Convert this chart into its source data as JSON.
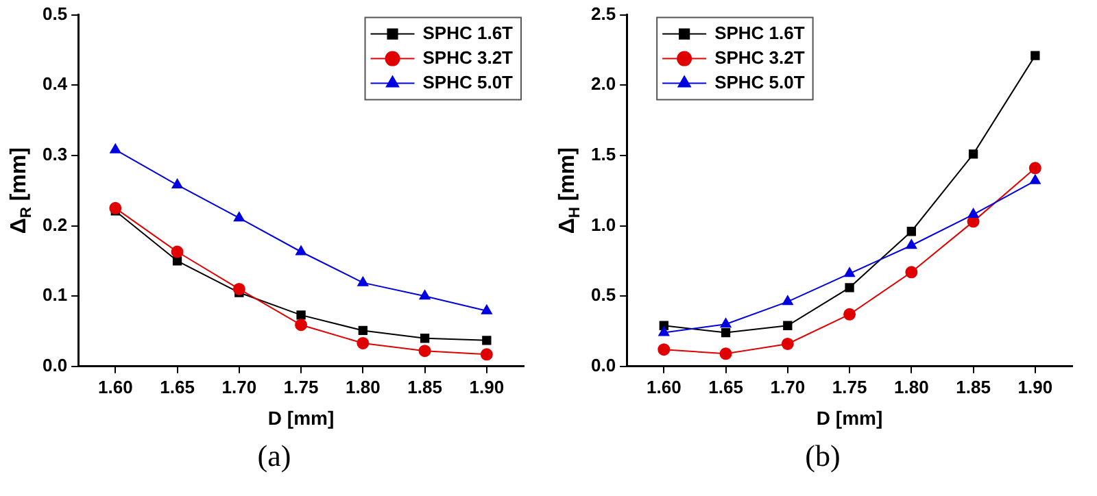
{
  "chart_data": [
    {
      "type": "line",
      "xlabel": "D [mm]",
      "ylabel": "Δ$_{R}$ [mm]",
      "annotations": [
        "(a)"
      ],
      "legend": "top right",
      "grid": false,
      "x": [
        1.6,
        1.65,
        1.7,
        1.75,
        1.8,
        1.85,
        1.9
      ],
      "xlim": [
        1.57,
        1.93
      ],
      "xticks": [
        {
          "value": 1.6,
          "label": "1.60"
        },
        {
          "value": 1.65,
          "label": "1.65"
        },
        {
          "value": 1.7,
          "label": "1.70"
        },
        {
          "value": 1.75,
          "label": "1.75"
        },
        {
          "value": 1.8,
          "label": "1.80"
        },
        {
          "value": 1.85,
          "label": "1.85"
        },
        {
          "value": 1.9,
          "label": "1.90"
        }
      ],
      "ylim": [
        0,
        0.5
      ],
      "yticks": [
        {
          "value": 0,
          "label": "0.0"
        },
        0.1,
        0.2,
        0.3,
        0.4,
        0.5
      ],
      "series": [
        {
          "name": "SPHC 1.6T",
          "color": "#000000",
          "marker": "square",
          "values": [
            0.221,
            0.15,
            0.105,
            0.073,
            0.051,
            0.04,
            0.037
          ]
        },
        {
          "name": "SPHC 3.2T",
          "color": "#e00000",
          "marker": "circle",
          "values": [
            0.225,
            0.163,
            0.11,
            0.059,
            0.033,
            0.022,
            0.017
          ]
        },
        {
          "name": "SPHC 5.0T",
          "color": "#0000e0",
          "marker": "triangle",
          "values": [
            0.308,
            0.258,
            0.211,
            0.163,
            0.119,
            0.1,
            0.079
          ]
        }
      ]
    },
    {
      "type": "line",
      "xlabel": "D [mm]",
      "ylabel": "Δ$_{H}$ [mm]",
      "annotations": [
        "(b)"
      ],
      "legend": "top left",
      "grid": false,
      "x": [
        1.6,
        1.65,
        1.7,
        1.75,
        1.8,
        1.85,
        1.9
      ],
      "xlim": [
        1.57,
        1.93
      ],
      "xticks": [
        {
          "value": 1.6,
          "label": "1.60"
        },
        {
          "value": 1.65,
          "label": "1.65"
        },
        {
          "value": 1.7,
          "label": "1.70"
        },
        {
          "value": 1.75,
          "label": "1.75"
        },
        {
          "value": 1.8,
          "label": "1.80"
        },
        {
          "value": 1.85,
          "label": "1.85"
        },
        {
          "value": 1.9,
          "label": "1.90"
        }
      ],
      "ylim": [
        0,
        2.5
      ],
      "yticks": [
        {
          "value": 0,
          "label": "0.0"
        },
        0.5,
        {
          "value": 1,
          "label": "1.0"
        },
        1.5,
        {
          "value": 2,
          "label": "2.0"
        },
        2.5
      ],
      "series": [
        {
          "name": "SPHC 1.6T",
          "color": "#000000",
          "marker": "square",
          "values": [
            0.29,
            0.24,
            0.29,
            0.56,
            0.96,
            1.51,
            2.21
          ]
        },
        {
          "name": "SPHC 3.2T",
          "color": "#e00000",
          "marker": "circle",
          "values": [
            0.12,
            0.09,
            0.16,
            0.37,
            0.67,
            1.03,
            1.41
          ]
        },
        {
          "name": "SPHC 5.0T",
          "color": "#0000e0",
          "marker": "triangle",
          "values": [
            0.24,
            0.3,
            0.46,
            0.66,
            0.86,
            1.08,
            1.32
          ]
        }
      ]
    }
  ]
}
